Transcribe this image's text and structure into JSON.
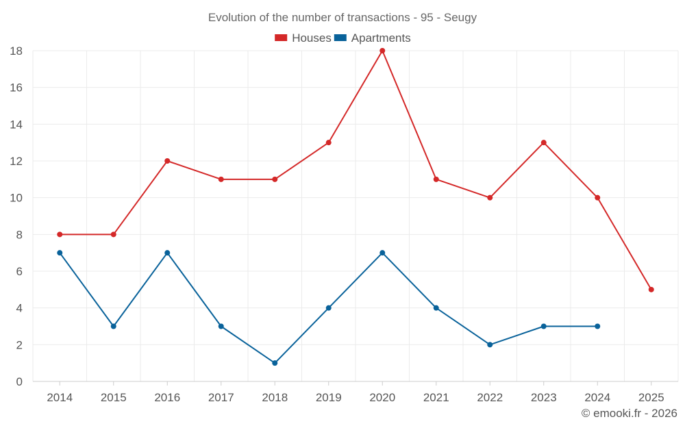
{
  "chart_data": {
    "type": "line",
    "title": "Evolution of the number of transactions - 95 - Seugy",
    "categories": [
      "2014",
      "2015",
      "2016",
      "2017",
      "2018",
      "2019",
      "2020",
      "2021",
      "2022",
      "2023",
      "2024",
      "2025"
    ],
    "series": [
      {
        "name": "Houses",
        "color": "#d42828",
        "values": [
          8,
          8,
          12,
          11,
          11,
          13,
          18,
          11,
          10,
          13,
          10,
          5
        ]
      },
      {
        "name": "Apartments",
        "color": "#09629a",
        "values": [
          7,
          3,
          7,
          3,
          1,
          4,
          7,
          4,
          2,
          3,
          3,
          null
        ]
      }
    ],
    "ylim": [
      0,
      18
    ],
    "yticks": [
      0,
      2,
      4,
      6,
      8,
      10,
      12,
      14,
      16,
      18
    ],
    "grid": true,
    "legend_position": "top-center",
    "xlabel": "",
    "ylabel": ""
  },
  "credit": "© emooki.fr - 2026"
}
